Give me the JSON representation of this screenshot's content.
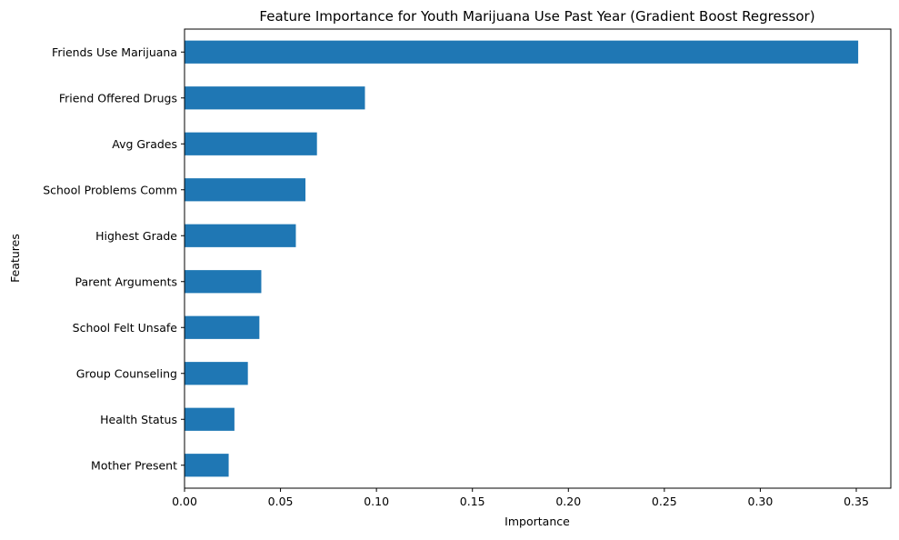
{
  "chart_data": {
    "type": "bar",
    "orientation": "horizontal",
    "title": "Feature Importance for Youth Marijuana Use Past Year (Gradient Boost Regressor)",
    "xlabel": "Importance",
    "ylabel": "Features",
    "xlim": [
      0,
      0.368
    ],
    "xticks": [
      0.0,
      0.05,
      0.1,
      0.15,
      0.2,
      0.25,
      0.3,
      0.35
    ],
    "xtick_labels": [
      "0.00",
      "0.05",
      "0.10",
      "0.15",
      "0.20",
      "0.25",
      "0.30",
      "0.35"
    ],
    "grid": false,
    "legend": "none",
    "bar_color": "#1f77b4",
    "categories": [
      "Friends Use Marijuana",
      "Friend Offered Drugs",
      "Avg Grades",
      "School Problems Comm",
      "Highest Grade",
      "Parent Arguments",
      "School Felt Unsafe",
      "Group Counseling",
      "Health Status",
      "Mother Present"
    ],
    "values": [
      0.351,
      0.094,
      0.069,
      0.063,
      0.058,
      0.04,
      0.039,
      0.033,
      0.026,
      0.023
    ]
  }
}
